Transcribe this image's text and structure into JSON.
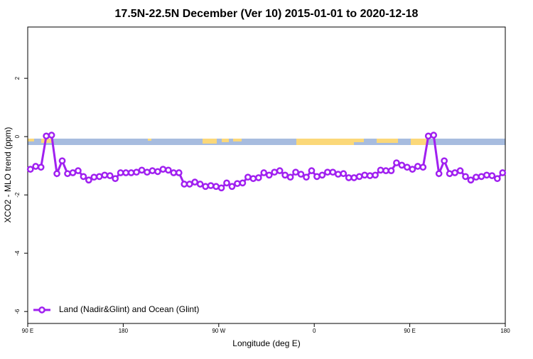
{
  "chart_data": {
    "type": "line",
    "title": "17.5N-22.5N December (Ver 10)   2015-01-01 to 2020-12-18",
    "x_label": "Longitude (deg E)",
    "y_label": "XCO2 - MLO trend (ppm)",
    "x": [
      92.5,
      97.5,
      102.5,
      107.5,
      112.5,
      117.5,
      122.5,
      127.5,
      132.5,
      137.5,
      142.5,
      147.5,
      152.5,
      157.5,
      162.5,
      167.5,
      172.5,
      177.5,
      182.5,
      187.5,
      192.5,
      197.5,
      202.5,
      207.5,
      212.5,
      217.5,
      222.5,
      227.5,
      232.5,
      237.5,
      242.5,
      247.5,
      252.5,
      257.5,
      262.5,
      267.5,
      272.5,
      277.5,
      282.5,
      287.5,
      292.5,
      297.5,
      302.5,
      307.5,
      312.5,
      317.5,
      322.5,
      327.5,
      332.5,
      337.5,
      342.5,
      347.5,
      352.5,
      357.5,
      362.5,
      367.5,
      372.5,
      377.5,
      382.5,
      387.5,
      392.5,
      397.5,
      402.5,
      407.5,
      412.5,
      417.5,
      422.5,
      427.5,
      432.5,
      437.5,
      442.5,
      447.5,
      452.5,
      457.5,
      462.5,
      467.5,
      472.5,
      477.5,
      482.5,
      487.5,
      492.5,
      497.5,
      502.5,
      507.5,
      512.5,
      517.5,
      522.5,
      527.5,
      532.5,
      537.5
    ],
    "series": [
      {
        "name": "Land (Nadir&Glint) and Ocean (Glint)",
        "color": "#a020f0",
        "values": [
          -1.12,
          -1.02,
          -1.05,
          0.02,
          0.05,
          -1.27,
          -0.83,
          -1.27,
          -1.24,
          -1.17,
          -1.37,
          -1.49,
          -1.39,
          -1.37,
          -1.32,
          -1.34,
          -1.44,
          -1.24,
          -1.24,
          -1.24,
          -1.22,
          -1.15,
          -1.22,
          -1.17,
          -1.2,
          -1.12,
          -1.15,
          -1.24,
          -1.24,
          -1.63,
          -1.63,
          -1.56,
          -1.63,
          -1.71,
          -1.68,
          -1.71,
          -1.76,
          -1.59,
          -1.71,
          -1.61,
          -1.59,
          -1.39,
          -1.44,
          -1.41,
          -1.24,
          -1.32,
          -1.22,
          -1.17,
          -1.32,
          -1.39,
          -1.22,
          -1.29,
          -1.39,
          -1.17,
          -1.37,
          -1.32,
          -1.22,
          -1.22,
          -1.29,
          -1.27,
          -1.41,
          -1.41,
          -1.37,
          -1.32,
          -1.34,
          -1.32,
          -1.15,
          -1.17,
          -1.17,
          -0.9,
          -0.98,
          -1.05,
          -1.12,
          -1.02,
          -1.05,
          0.02,
          0.05,
          -1.27,
          -0.83,
          -1.27,
          -1.24,
          -1.17,
          -1.37,
          -1.49,
          -1.39,
          -1.37,
          -1.32,
          -1.34,
          -1.44,
          -1.24
        ]
      }
    ],
    "xlim": [
      90,
      540
    ],
    "xticks": [
      {
        "value": 90,
        "label": "90 E"
      },
      180,
      {
        "value": 270,
        "label": "90 W"
      },
      {
        "value": 360,
        "label": "0"
      },
      {
        "value": 450,
        "label": "90 E"
      },
      {
        "value": 540,
        "label": "180"
      }
    ],
    "ylim": [
      -6.41,
      3.76
    ],
    "yticks": [
      -6,
      -4,
      -2,
      0,
      2
    ],
    "legend": "bottom-left"
  }
}
